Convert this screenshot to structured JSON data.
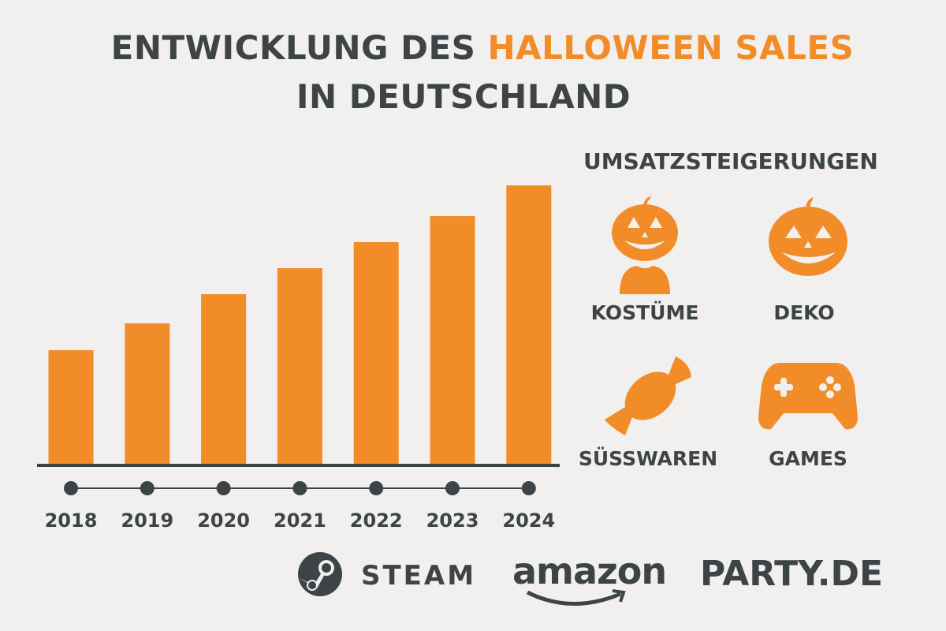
{
  "title": {
    "line1_prefix": "ENTWICKLUNG DES ",
    "line1_highlight": "HALLOWEEN SALES",
    "line2": "IN DEUTSCHLAND"
  },
  "colors": {
    "accent": "#f28c28",
    "text": "#3d4448",
    "background": "#f1f0ee"
  },
  "chart_data": {
    "type": "bar",
    "categories": [
      "2018",
      "2019",
      "2020",
      "2021",
      "2022",
      "2023",
      "2024"
    ],
    "values": [
      144,
      178,
      215,
      248,
      281,
      314,
      353
    ],
    "ylim": [
      0,
      360
    ],
    "title": "",
    "xlabel": "",
    "ylabel": "",
    "grid": false,
    "y_axis_shown": false,
    "color": "#f28c28"
  },
  "categories_panel": {
    "heading": "UMSATZSTEIGERUNGEN",
    "items": [
      {
        "label": "KOSTÜME",
        "icon": "pumpkin-head-person-icon"
      },
      {
        "label": "DEKO",
        "icon": "jack-o-lantern-icon"
      },
      {
        "label": "SÜSSWAREN",
        "icon": "candy-icon"
      },
      {
        "label": "GAMES",
        "icon": "gamepad-icon"
      }
    ]
  },
  "logos": {
    "steam": "STEAM",
    "amazon": "amazon",
    "party": "PARTY.DE"
  }
}
